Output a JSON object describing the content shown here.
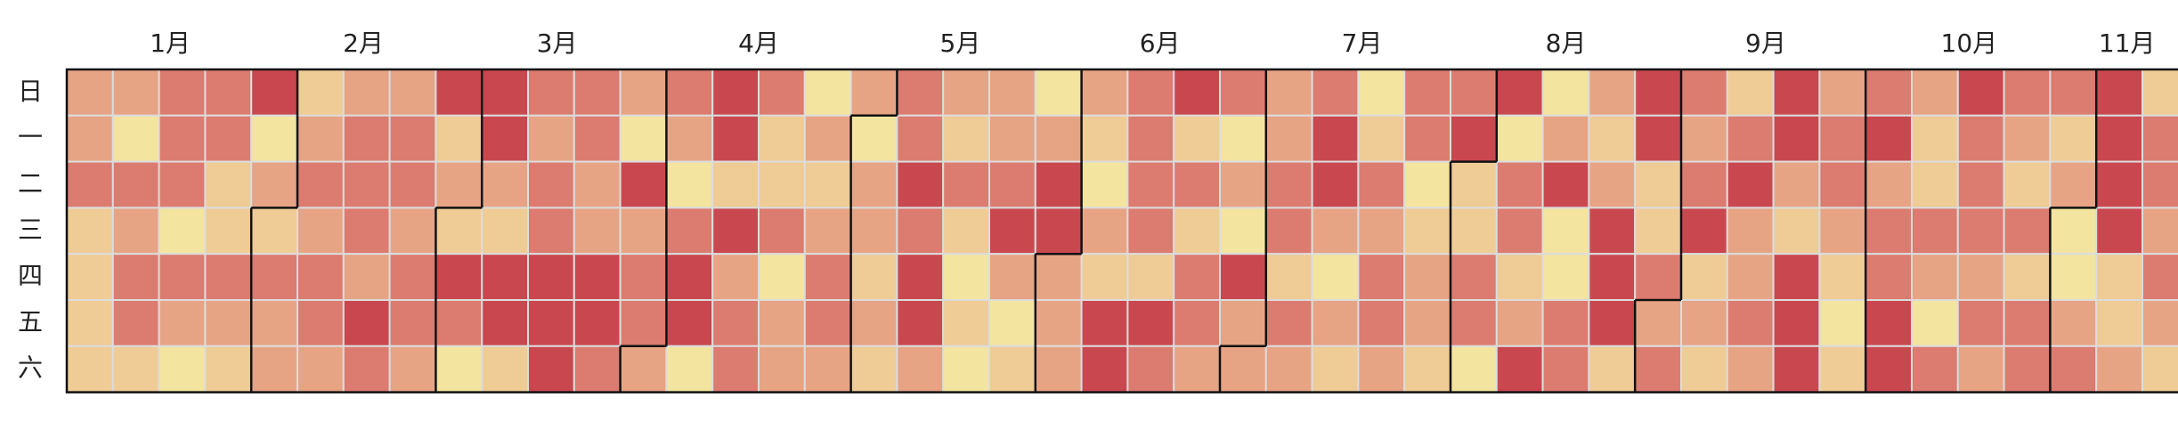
{
  "chart_data": {
    "type": "calendar-heatmap",
    "months": [
      "1月",
      "2月",
      "3月",
      "4月",
      "5月",
      "6月",
      "7月",
      "8月",
      "9月",
      "10月",
      "11月"
    ],
    "weekdays": [
      "日",
      "一",
      "二",
      "三",
      "四",
      "五",
      "六"
    ],
    "colors": [
      "#f3e4a0",
      "#efcb96",
      "#e6a485",
      "#dc7b70",
      "#c9484f"
    ],
    "values": [
      [
        2,
        2,
        3,
        1,
        1,
        1,
        1
      ],
      [
        2,
        0,
        3,
        2,
        3,
        3,
        1
      ],
      [
        3,
        3,
        3,
        0,
        3,
        2,
        0
      ],
      [
        3,
        3,
        1,
        1,
        3,
        2,
        1
      ],
      [
        4,
        0,
        2,
        1,
        3,
        2,
        2
      ],
      [
        1,
        2,
        3,
        2,
        3,
        3,
        2
      ],
      [
        2,
        3,
        3,
        3,
        2,
        4,
        3
      ],
      [
        2,
        3,
        3,
        2,
        3,
        3,
        2
      ],
      [
        4,
        1,
        2,
        1,
        4,
        3,
        0
      ],
      [
        4,
        4,
        2,
        1,
        4,
        4,
        1
      ],
      [
        3,
        2,
        3,
        3,
        4,
        4,
        4
      ],
      [
        3,
        3,
        2,
        2,
        4,
        4,
        3
      ],
      [
        2,
        0,
        4,
        2,
        3,
        3,
        2
      ],
      [
        3,
        2,
        0,
        3,
        4,
        4,
        0
      ],
      [
        4,
        4,
        1,
        4,
        2,
        3,
        3
      ],
      [
        3,
        1,
        1,
        3,
        0,
        2,
        2
      ],
      [
        0,
        2,
        1,
        2,
        3,
        3,
        2
      ],
      [
        2,
        0,
        2,
        2,
        1,
        2,
        1
      ],
      [
        3,
        3,
        4,
        3,
        4,
        4,
        2
      ],
      [
        2,
        1,
        3,
        1,
        0,
        1,
        0
      ],
      [
        2,
        2,
        3,
        4,
        2,
        0,
        1
      ],
      [
        0,
        2,
        4,
        4,
        2,
        2,
        2
      ],
      [
        2,
        1,
        0,
        2,
        1,
        4,
        4
      ],
      [
        3,
        3,
        3,
        3,
        1,
        4,
        3
      ],
      [
        4,
        1,
        3,
        1,
        3,
        3,
        2
      ],
      [
        3,
        0,
        2,
        0,
        4,
        2,
        2
      ],
      [
        2,
        2,
        3,
        3,
        1,
        3,
        2
      ],
      [
        3,
        4,
        4,
        2,
        0,
        2,
        1
      ],
      [
        0,
        1,
        3,
        2,
        3,
        3,
        2
      ],
      [
        3,
        3,
        0,
        1,
        2,
        2,
        1
      ],
      [
        3,
        4,
        1,
        1,
        3,
        3,
        0
      ],
      [
        4,
        0,
        3,
        3,
        1,
        2,
        4
      ],
      [
        0,
        2,
        4,
        0,
        0,
        3,
        3
      ],
      [
        2,
        1,
        2,
        4,
        4,
        4,
        1
      ],
      [
        4,
        4,
        1,
        1,
        3,
        2,
        3
      ],
      [
        3,
        2,
        3,
        4,
        1,
        2,
        1
      ],
      [
        1,
        3,
        4,
        2,
        2,
        3,
        2
      ],
      [
        4,
        4,
        2,
        1,
        4,
        4,
        4
      ],
      [
        2,
        3,
        3,
        2,
        1,
        0,
        1
      ],
      [
        3,
        4,
        2,
        3,
        3,
        4,
        4
      ],
      [
        2,
        1,
        1,
        3,
        2,
        0,
        3
      ],
      [
        4,
        3,
        3,
        3,
        2,
        3,
        2
      ],
      [
        3,
        2,
        1,
        3,
        1,
        3,
        3
      ],
      [
        3,
        1,
        2,
        0,
        0,
        2,
        3
      ],
      [
        4,
        4,
        4,
        4,
        1,
        1,
        2
      ],
      [
        1,
        3,
        3,
        2,
        3,
        2,
        1
      ]
    ]
  }
}
